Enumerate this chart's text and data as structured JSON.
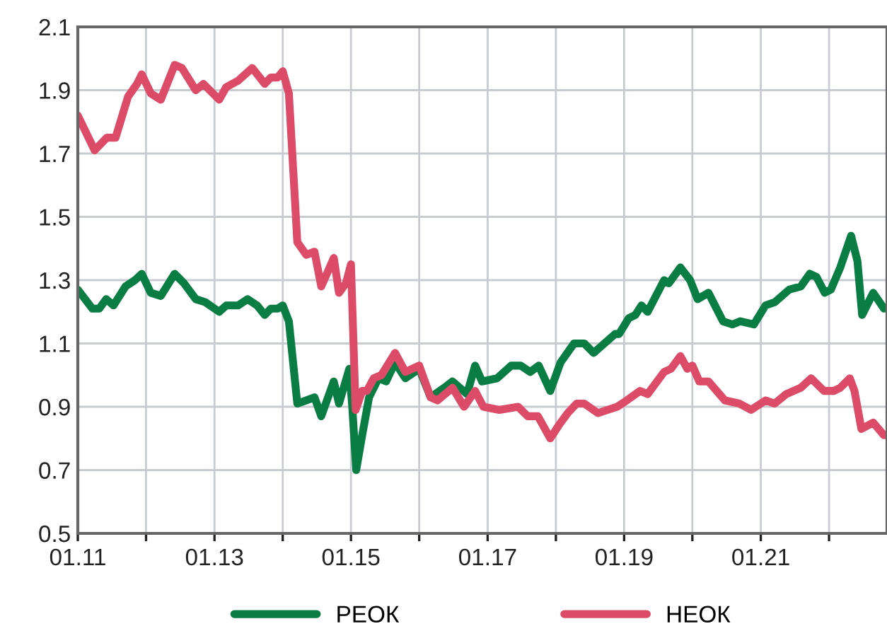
{
  "chart_data": {
    "type": "line",
    "xlim": [
      "2011-01-01",
      "2022-11-07"
    ],
    "ylim": [
      0.5,
      2.1
    ],
    "xticks": [
      {
        "value": "2011-01-01",
        "label": "01.11"
      },
      {
        "value": "2012-01-01",
        "label": null
      },
      {
        "value": "2013-01-01",
        "label": "01.13"
      },
      {
        "value": "2014-01-01",
        "label": null
      },
      {
        "value": "2015-01-01",
        "label": "01.15"
      },
      {
        "value": "2016-01-01",
        "label": null
      },
      {
        "value": "2017-01-01",
        "label": "01.17"
      },
      {
        "value": "2018-01-01",
        "label": null
      },
      {
        "value": "2019-01-01",
        "label": "01.19"
      },
      {
        "value": "2020-01-01",
        "label": null
      },
      {
        "value": "2021-01-01",
        "label": "01.21"
      },
      {
        "value": "2022-01-01",
        "label": null
      }
    ],
    "yticks": [
      0.5,
      0.7,
      0.9,
      1.1,
      1.3,
      1.5,
      1.7,
      1.9,
      2.1
    ],
    "grid": true,
    "legend": "bottom",
    "marker": "none",
    "line_style": "solid",
    "series": [
      {
        "name": "РЕОК",
        "color": "#0a7d45",
        "x": [
          "2011-01-01",
          "2011-03-20",
          "2011-04-26",
          "2011-06-02",
          "2011-07-11",
          "2011-09-13",
          "2011-11-03",
          "2011-12-09",
          "2012-01-26",
          "2012-03-20",
          "2012-06-02",
          "2012-07-22",
          "2012-09-23",
          "2012-11-14",
          "2013-01-26",
          "2013-03-05",
          "2013-05-07",
          "2013-06-27",
          "2013-08-17",
          "2013-09-27",
          "2013-10-29",
          "2013-12-05",
          "2014-01-01",
          "2014-02-03",
          "2014-03-20",
          "2014-05-07",
          "2014-06-20",
          "2014-07-26",
          "2014-10-01",
          "2014-10-29",
          "2014-12-23",
          "2015-01-08",
          "2015-01-29",
          "2015-03-02",
          "2015-04-08",
          "2015-05-28",
          "2015-07-08",
          "2015-08-25",
          "2015-10-19",
          "2016-01-01",
          "2016-03-02",
          "2016-05-14",
          "2016-06-27",
          "2016-09-13",
          "2016-10-26",
          "2016-12-02",
          "2017-02-21",
          "2017-05-07",
          "2017-06-27",
          "2017-08-17",
          "2017-10-01",
          "2017-12-02",
          "2018-01-26",
          "2018-04-08",
          "2018-06-02",
          "2018-07-22",
          "2018-11-14",
          "2018-12-05",
          "2019-01-26",
          "2019-03-02",
          "2019-04-04",
          "2019-05-07",
          "2019-08-03",
          "2019-08-28",
          "2019-10-29",
          "2019-12-20",
          "2020-01-29",
          "2020-03-27",
          "2020-06-13",
          "2020-08-03",
          "2020-09-13",
          "2020-11-25",
          "2021-01-26",
          "2021-03-16",
          "2021-06-02",
          "2021-08-03",
          "2021-09-20",
          "2021-10-26",
          "2021-12-09",
          "2022-01-11",
          "2022-03-02",
          "2022-04-29",
          "2022-06-02",
          "2022-06-27",
          "2022-08-25",
          "2022-10-22"
        ],
        "values": [
          1.27,
          1.21,
          1.21,
          1.24,
          1.22,
          1.28,
          1.3,
          1.32,
          1.26,
          1.25,
          1.32,
          1.29,
          1.24,
          1.23,
          1.2,
          1.22,
          1.22,
          1.24,
          1.22,
          1.19,
          1.21,
          1.21,
          1.22,
          1.17,
          0.91,
          0.92,
          0.93,
          0.87,
          0.98,
          0.91,
          1.02,
          0.9,
          0.7,
          0.81,
          0.93,
          0.99,
          0.98,
          1.04,
          0.99,
          1.02,
          0.93,
          0.96,
          0.98,
          0.94,
          1.03,
          0.98,
          0.99,
          1.03,
          1.03,
          1.01,
          1.03,
          0.95,
          1.04,
          1.1,
          1.1,
          1.07,
          1.13,
          1.13,
          1.18,
          1.19,
          1.22,
          1.2,
          1.3,
          1.29,
          1.34,
          1.3,
          1.24,
          1.26,
          1.17,
          1.16,
          1.17,
          1.16,
          1.22,
          1.23,
          1.27,
          1.28,
          1.32,
          1.31,
          1.26,
          1.27,
          1.34,
          1.44,
          1.36,
          1.19,
          1.26,
          1.21
        ]
      },
      {
        "name": "НЕОК",
        "color": "#dc4c68",
        "x": [
          "2011-01-01",
          "2011-04-01",
          "2011-06-05",
          "2011-07-22",
          "2011-09-27",
          "2011-11-14",
          "2011-12-09",
          "2012-01-26",
          "2012-03-20",
          "2012-06-02",
          "2012-07-11",
          "2012-09-23",
          "2012-11-03",
          "2013-01-26",
          "2013-03-05",
          "2013-05-07",
          "2013-07-22",
          "2013-09-27",
          "2013-10-29",
          "2013-12-05",
          "2014-01-01",
          "2014-02-03",
          "2014-03-20",
          "2014-05-07",
          "2014-06-20",
          "2014-07-26",
          "2014-10-01",
          "2014-10-29",
          "2014-12-05",
          "2015-01-01",
          "2015-01-26",
          "2015-03-02",
          "2015-03-27",
          "2015-05-03",
          "2015-06-13",
          "2015-08-25",
          "2015-10-19",
          "2016-01-01",
          "2016-03-02",
          "2016-04-08",
          "2016-06-27",
          "2016-08-28",
          "2016-10-26",
          "2016-12-09",
          "2017-03-05",
          "2017-06-13",
          "2017-08-03",
          "2017-09-27",
          "2017-12-02",
          "2018-01-15",
          "2018-03-05",
          "2018-04-22",
          "2018-06-02",
          "2018-08-14",
          "2018-10-04",
          "2018-11-25",
          "2019-01-15",
          "2019-03-27",
          "2019-05-07",
          "2019-08-03",
          "2019-09-09",
          "2019-10-29",
          "2019-12-05",
          "2020-01-01",
          "2020-02-07",
          "2020-03-27",
          "2020-06-23",
          "2020-09-09",
          "2020-11-10",
          "2021-01-26",
          "2021-03-16",
          "2021-05-17",
          "2021-08-03",
          "2021-09-27",
          "2021-12-05",
          "2022-01-26",
          "2022-03-02",
          "2022-04-22",
          "2022-05-17",
          "2022-06-23",
          "2022-08-25",
          "2022-10-22"
        ],
        "values": [
          1.82,
          1.71,
          1.75,
          1.75,
          1.88,
          1.92,
          1.95,
          1.89,
          1.87,
          1.98,
          1.97,
          1.9,
          1.92,
          1.87,
          1.91,
          1.93,
          1.97,
          1.92,
          1.94,
          1.94,
          1.96,
          1.89,
          1.42,
          1.38,
          1.39,
          1.28,
          1.37,
          1.26,
          1.29,
          1.35,
          0.89,
          0.95,
          0.95,
          0.99,
          1.0,
          1.07,
          1.01,
          1.03,
          0.93,
          0.92,
          0.96,
          0.9,
          0.95,
          0.9,
          0.89,
          0.9,
          0.87,
          0.87,
          0.8,
          0.84,
          0.88,
          0.91,
          0.91,
          0.88,
          0.89,
          0.9,
          0.92,
          0.95,
          0.94,
          1.01,
          1.02,
          1.06,
          1.02,
          1.03,
          0.98,
          0.98,
          0.92,
          0.91,
          0.89,
          0.92,
          0.91,
          0.94,
          0.96,
          0.99,
          0.95,
          0.95,
          0.96,
          0.99,
          0.95,
          0.83,
          0.85,
          0.81
        ]
      }
    ]
  }
}
